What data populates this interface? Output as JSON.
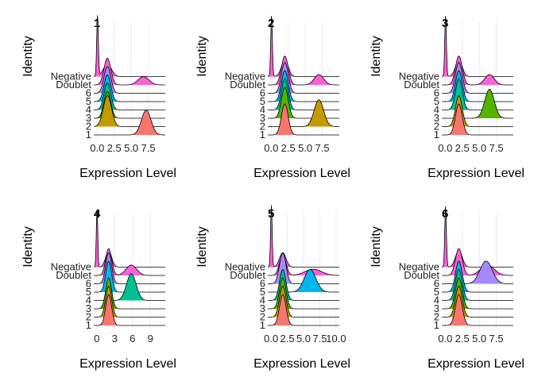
{
  "colors": {
    "1": "#F8766D",
    "2": "#C49A00",
    "3": "#53B400",
    "4": "#00C094",
    "5": "#00B6EB",
    "6": "#A58AFF",
    "Doublet": "#FB61D7",
    "Negative": "#FB61D7",
    "background": "#FFFFFF",
    "grid": "#EBEBEB"
  },
  "chart_data": [
    {
      "type": "ridgeline",
      "title": "1",
      "xlabel": "Expression Level",
      "ylabel": "Identity",
      "xlim": [
        -0.5,
        10
      ],
      "xticks": [
        0.0,
        2.5,
        5.0,
        7.5
      ],
      "xtick_labels": [
        "0.0",
        "2.5",
        "5.0",
        "7.5"
      ],
      "identities": [
        "1",
        "2",
        "3",
        "4",
        "5",
        "6",
        "Doublet",
        "Negative"
      ],
      "series": [
        {
          "identity": "1",
          "peak": 7.2,
          "sd": 0.7,
          "height": 1.2
        },
        {
          "identity": "2",
          "peak": 1.5,
          "sd": 0.6,
          "height": 1.5
        },
        {
          "identity": "3",
          "peak": 1.5,
          "sd": 0.5,
          "height": 1.3
        },
        {
          "identity": "4",
          "peak": 1.5,
          "sd": 0.5,
          "height": 1.3
        },
        {
          "identity": "5",
          "peak": 1.5,
          "sd": 0.5,
          "height": 1.3
        },
        {
          "identity": "6",
          "peak": 1.5,
          "sd": 0.5,
          "height": 1.3
        },
        {
          "identity": "Doublet",
          "peak": 1.5,
          "sd": 0.5,
          "height": 1.3,
          "peak2": 6.8,
          "sd2": 0.8,
          "height2": 0.4
        },
        {
          "identity": "Negative",
          "peak": 0.05,
          "sd": 0.12,
          "height": 3.0,
          "peak2": 1.5,
          "sd2": 0.6,
          "height2": 0.6
        }
      ]
    },
    {
      "type": "ridgeline",
      "title": "2",
      "xlabel": "Expression Level",
      "ylabel": "Identity",
      "xlim": [
        -0.5,
        10
      ],
      "xticks": [
        0.0,
        2.5,
        5.0,
        7.5
      ],
      "xtick_labels": [
        "0.0",
        "2.5",
        "5.0",
        "7.5"
      ],
      "identities": [
        "1",
        "2",
        "3",
        "4",
        "5",
        "6",
        "Doublet",
        "Negative"
      ],
      "series": [
        {
          "identity": "1",
          "peak": 2.0,
          "sd": 0.5,
          "height": 1.5
        },
        {
          "identity": "2",
          "peak": 7.0,
          "sd": 0.7,
          "height": 1.3
        },
        {
          "identity": "3",
          "peak": 2.0,
          "sd": 0.5,
          "height": 1.5
        },
        {
          "identity": "4",
          "peak": 2.0,
          "sd": 0.5,
          "height": 1.5
        },
        {
          "identity": "5",
          "peak": 2.0,
          "sd": 0.5,
          "height": 1.5
        },
        {
          "identity": "6",
          "peak": 2.0,
          "sd": 0.5,
          "height": 1.5
        },
        {
          "identity": "Doublet",
          "peak": 2.0,
          "sd": 0.5,
          "height": 1.4,
          "peak2": 7.0,
          "sd2": 0.7,
          "height2": 0.5
        },
        {
          "identity": "Negative",
          "peak": 0.05,
          "sd": 0.12,
          "height": 3.0,
          "peak2": 2.0,
          "sd2": 0.5,
          "height2": 0.8
        }
      ]
    },
    {
      "type": "ridgeline",
      "title": "3",
      "xlabel": "Expression Level",
      "ylabel": "Identity",
      "xlim": [
        -0.5,
        10
      ],
      "xticks": [
        0.0,
        2.5,
        5.0,
        7.5
      ],
      "xtick_labels": [
        "0.0",
        "2.5",
        "5.0",
        "7.5"
      ],
      "identities": [
        "1",
        "2",
        "3",
        "4",
        "5",
        "6",
        "Doublet",
        "Negative"
      ],
      "series": [
        {
          "identity": "1",
          "peak": 2.0,
          "sd": 0.5,
          "height": 1.5
        },
        {
          "identity": "2",
          "peak": 2.0,
          "sd": 0.5,
          "height": 1.5
        },
        {
          "identity": "3",
          "peak": 6.5,
          "sd": 0.7,
          "height": 1.4
        },
        {
          "identity": "4",
          "peak": 2.0,
          "sd": 0.5,
          "height": 1.5
        },
        {
          "identity": "5",
          "peak": 2.0,
          "sd": 0.5,
          "height": 1.5
        },
        {
          "identity": "6",
          "peak": 2.0,
          "sd": 0.5,
          "height": 1.5
        },
        {
          "identity": "Doublet",
          "peak": 2.0,
          "sd": 0.5,
          "height": 1.4,
          "peak2": 6.5,
          "sd2": 0.7,
          "height2": 0.5
        },
        {
          "identity": "Negative",
          "peak": 0.05,
          "sd": 0.12,
          "height": 3.0,
          "peak2": 2.0,
          "sd2": 0.5,
          "height2": 0.8
        }
      ]
    },
    {
      "type": "ridgeline",
      "title": "4",
      "xlabel": "Expression Level",
      "ylabel": "Identity",
      "xlim": [
        -0.5,
        11.5
      ],
      "xticks": [
        0,
        3,
        6,
        9
      ],
      "xtick_labels": [
        "0",
        "3",
        "6",
        "9"
      ],
      "identities": [
        "1",
        "2",
        "3",
        "4",
        "5",
        "6",
        "Doublet",
        "Negative"
      ],
      "series": [
        {
          "identity": "1",
          "peak": 2.0,
          "sd": 0.5,
          "height": 1.5
        },
        {
          "identity": "2",
          "peak": 2.0,
          "sd": 0.5,
          "height": 1.5
        },
        {
          "identity": "3",
          "peak": 2.0,
          "sd": 0.5,
          "height": 1.5
        },
        {
          "identity": "4",
          "peak": 5.8,
          "sd": 0.8,
          "height": 1.3
        },
        {
          "identity": "5",
          "peak": 2.0,
          "sd": 0.5,
          "height": 1.5
        },
        {
          "identity": "6",
          "peak": 2.0,
          "sd": 0.5,
          "height": 1.5
        },
        {
          "identity": "Doublet",
          "peak": 2.0,
          "sd": 0.5,
          "height": 1.3,
          "peak2": 5.8,
          "sd2": 0.9,
          "height2": 0.5
        },
        {
          "identity": "Negative",
          "peak": 0.05,
          "sd": 0.12,
          "height": 3.0,
          "peak2": 2.0,
          "sd2": 0.5,
          "height2": 0.8
        }
      ]
    },
    {
      "type": "ridgeline",
      "title": "5",
      "xlabel": "Expression Level",
      "ylabel": "Identity",
      "xlim": [
        -0.5,
        10.5
      ],
      "xticks": [
        0.0,
        2.5,
        5.0,
        7.5,
        10.0
      ],
      "xtick_labels": [
        "0.0",
        "2.5",
        "5.0",
        "7.5",
        "10.0"
      ],
      "identities": [
        "1",
        "2",
        "3",
        "4",
        "5",
        "6",
        "Doublet",
        "Negative"
      ],
      "series": [
        {
          "identity": "1",
          "peak": 1.8,
          "sd": 0.5,
          "height": 1.5
        },
        {
          "identity": "2",
          "peak": 1.8,
          "sd": 0.5,
          "height": 1.5
        },
        {
          "identity": "3",
          "peak": 1.8,
          "sd": 0.5,
          "height": 1.5
        },
        {
          "identity": "4",
          "peak": 1.8,
          "sd": 0.5,
          "height": 1.5
        },
        {
          "identity": "5",
          "peak": 6.0,
          "sd": 0.9,
          "height": 1.1
        },
        {
          "identity": "6",
          "peak": 1.8,
          "sd": 0.5,
          "height": 1.5
        },
        {
          "identity": "Doublet",
          "peak": 1.8,
          "sd": 0.5,
          "height": 1.0,
          "peak2": 6.5,
          "sd2": 1.3,
          "height2": 0.3
        },
        {
          "identity": "Negative",
          "peak": 0.05,
          "sd": 0.12,
          "height": 3.0,
          "peak2": 1.8,
          "sd2": 0.5,
          "height2": 0.7
        }
      ]
    },
    {
      "type": "ridgeline",
      "title": "6",
      "xlabel": "Expression Level",
      "ylabel": "Identity",
      "xlim": [
        -0.5,
        10
      ],
      "xticks": [
        0.0,
        2.5,
        5.0,
        7.5
      ],
      "xtick_labels": [
        "0.0",
        "2.5",
        "5.0",
        "7.5"
      ],
      "identities": [
        "1",
        "2",
        "3",
        "4",
        "5",
        "6",
        "Doublet",
        "Negative"
      ],
      "series": [
        {
          "identity": "1",
          "peak": 2.0,
          "sd": 0.5,
          "height": 1.5
        },
        {
          "identity": "2",
          "peak": 2.0,
          "sd": 0.5,
          "height": 1.5
        },
        {
          "identity": "3",
          "peak": 2.0,
          "sd": 0.5,
          "height": 1.5
        },
        {
          "identity": "4",
          "peak": 2.0,
          "sd": 0.5,
          "height": 1.5
        },
        {
          "identity": "5",
          "peak": 2.0,
          "sd": 0.5,
          "height": 1.5
        },
        {
          "identity": "6",
          "peak": 6.0,
          "sd": 0.9,
          "height": 1.1
        },
        {
          "identity": "Doublet",
          "peak": 2.0,
          "sd": 0.5,
          "height": 1.3,
          "peak2": 6.2,
          "sd2": 1.0,
          "height2": 0.5
        },
        {
          "identity": "Negative",
          "peak": 0.05,
          "sd": 0.12,
          "height": 3.0,
          "peak2": 2.0,
          "sd2": 0.5,
          "height2": 0.8
        }
      ]
    }
  ]
}
